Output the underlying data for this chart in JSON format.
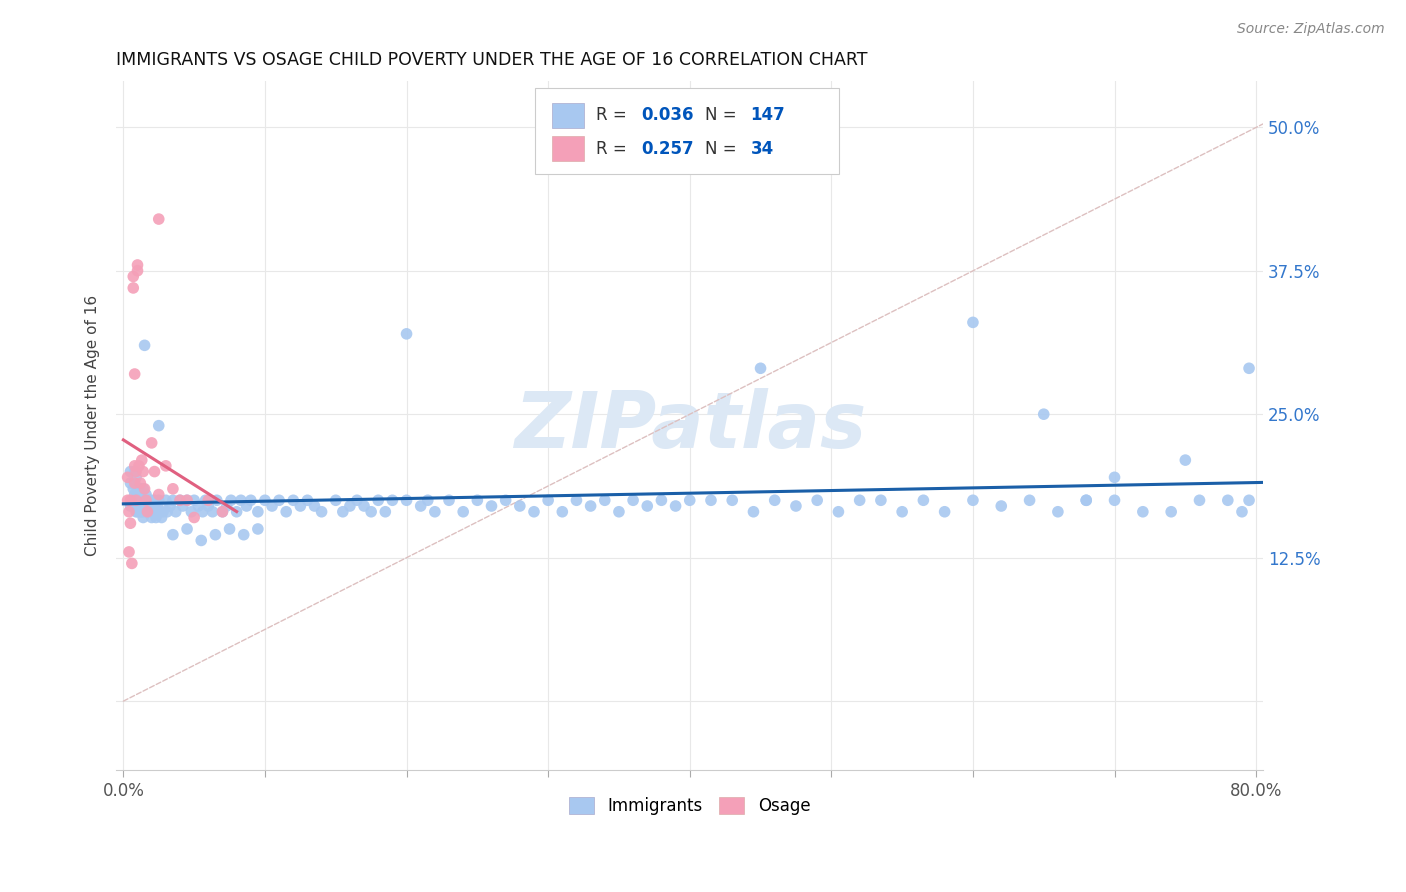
{
  "title": "IMMIGRANTS VS OSAGE CHILD POVERTY UNDER THE AGE OF 16 CORRELATION CHART",
  "source_text": "Source: ZipAtlas.com",
  "ylabel": "Child Poverty Under the Age of 16",
  "xlim": [
    -0.005,
    0.805
  ],
  "ylim": [
    -0.06,
    0.54
  ],
  "ytick_positions": [
    0.0,
    0.125,
    0.25,
    0.375,
    0.5
  ],
  "yticklabels": [
    "",
    "12.5%",
    "25.0%",
    "37.5%",
    "50.0%"
  ],
  "immigrants_R": 0.036,
  "immigrants_N": 147,
  "osage_R": 0.257,
  "osage_N": 34,
  "immigrants_color": "#a8c8f0",
  "osage_color": "#f4a0b8",
  "immigrants_line_color": "#1a5fa8",
  "osage_line_color": "#e06080",
  "diagonal_color": "#ddc0c0",
  "watermark_color": "#dce8f5",
  "watermark_text": "ZIPatlas",
  "background_color": "#ffffff",
  "grid_color": "#e8e8e8",
  "legend_R_color": "#0055bb",
  "legend_N_color": "#0055bb",
  "immigrants_x": [
    0.005,
    0.005,
    0.005,
    0.007,
    0.007,
    0.008,
    0.008,
    0.009,
    0.009,
    0.009,
    0.01,
    0.01,
    0.01,
    0.01,
    0.01,
    0.011,
    0.011,
    0.012,
    0.012,
    0.013,
    0.013,
    0.014,
    0.014,
    0.014,
    0.015,
    0.015,
    0.016,
    0.016,
    0.017,
    0.018,
    0.019,
    0.02,
    0.02,
    0.021,
    0.022,
    0.022,
    0.023,
    0.024,
    0.025,
    0.026,
    0.027,
    0.028,
    0.03,
    0.031,
    0.033,
    0.035,
    0.037,
    0.04,
    0.042,
    0.045,
    0.048,
    0.05,
    0.053,
    0.056,
    0.058,
    0.06,
    0.063,
    0.066,
    0.07,
    0.073,
    0.076,
    0.08,
    0.083,
    0.087,
    0.09,
    0.095,
    0.1,
    0.105,
    0.11,
    0.115,
    0.12,
    0.125,
    0.13,
    0.135,
    0.14,
    0.15,
    0.155,
    0.16,
    0.165,
    0.17,
    0.175,
    0.18,
    0.185,
    0.19,
    0.2,
    0.21,
    0.215,
    0.22,
    0.23,
    0.24,
    0.25,
    0.26,
    0.27,
    0.28,
    0.29,
    0.3,
    0.31,
    0.32,
    0.33,
    0.34,
    0.35,
    0.36,
    0.37,
    0.38,
    0.39,
    0.4,
    0.415,
    0.43,
    0.445,
    0.46,
    0.475,
    0.49,
    0.505,
    0.52,
    0.535,
    0.55,
    0.565,
    0.58,
    0.6,
    0.62,
    0.64,
    0.66,
    0.68,
    0.7,
    0.72,
    0.74,
    0.76,
    0.78,
    0.79,
    0.795,
    0.035,
    0.045,
    0.055,
    0.065,
    0.075,
    0.085,
    0.095,
    0.015,
    0.025,
    0.2,
    0.45,
    0.6,
    0.65,
    0.7,
    0.75,
    0.795,
    0.68
  ],
  "immigrants_y": [
    0.19,
    0.17,
    0.2,
    0.185,
    0.175,
    0.2,
    0.18,
    0.195,
    0.175,
    0.165,
    0.18,
    0.17,
    0.175,
    0.185,
    0.165,
    0.18,
    0.175,
    0.185,
    0.165,
    0.175,
    0.165,
    0.185,
    0.17,
    0.16,
    0.175,
    0.165,
    0.18,
    0.17,
    0.165,
    0.175,
    0.165,
    0.175,
    0.16,
    0.17,
    0.175,
    0.165,
    0.16,
    0.17,
    0.175,
    0.165,
    0.16,
    0.165,
    0.175,
    0.165,
    0.17,
    0.175,
    0.165,
    0.175,
    0.17,
    0.175,
    0.165,
    0.175,
    0.17,
    0.165,
    0.175,
    0.17,
    0.165,
    0.175,
    0.165,
    0.17,
    0.175,
    0.165,
    0.175,
    0.17,
    0.175,
    0.165,
    0.175,
    0.17,
    0.175,
    0.165,
    0.175,
    0.17,
    0.175,
    0.17,
    0.165,
    0.175,
    0.165,
    0.17,
    0.175,
    0.17,
    0.165,
    0.175,
    0.165,
    0.175,
    0.175,
    0.17,
    0.175,
    0.165,
    0.175,
    0.165,
    0.175,
    0.17,
    0.175,
    0.17,
    0.165,
    0.175,
    0.165,
    0.175,
    0.17,
    0.175,
    0.165,
    0.175,
    0.17,
    0.175,
    0.17,
    0.175,
    0.175,
    0.175,
    0.165,
    0.175,
    0.17,
    0.175,
    0.165,
    0.175,
    0.175,
    0.165,
    0.175,
    0.165,
    0.175,
    0.17,
    0.175,
    0.165,
    0.175,
    0.175,
    0.165,
    0.165,
    0.175,
    0.175,
    0.165,
    0.175,
    0.145,
    0.15,
    0.14,
    0.145,
    0.15,
    0.145,
    0.15,
    0.31,
    0.24,
    0.32,
    0.29,
    0.33,
    0.25,
    0.195,
    0.21,
    0.29,
    0.175
  ],
  "osage_x": [
    0.003,
    0.003,
    0.004,
    0.004,
    0.005,
    0.005,
    0.006,
    0.007,
    0.007,
    0.008,
    0.008,
    0.009,
    0.009,
    0.01,
    0.01,
    0.011,
    0.012,
    0.013,
    0.014,
    0.015,
    0.016,
    0.017,
    0.02,
    0.022,
    0.025,
    0.03,
    0.035,
    0.04,
    0.045,
    0.05,
    0.06,
    0.07,
    0.025,
    0.008
  ],
  "osage_y": [
    0.195,
    0.175,
    0.165,
    0.13,
    0.175,
    0.155,
    0.12,
    0.37,
    0.36,
    0.205,
    0.19,
    0.2,
    0.175,
    0.38,
    0.375,
    0.205,
    0.19,
    0.21,
    0.2,
    0.185,
    0.175,
    0.165,
    0.225,
    0.2,
    0.18,
    0.205,
    0.185,
    0.175,
    0.175,
    0.16,
    0.175,
    0.165,
    0.42,
    0.285
  ]
}
